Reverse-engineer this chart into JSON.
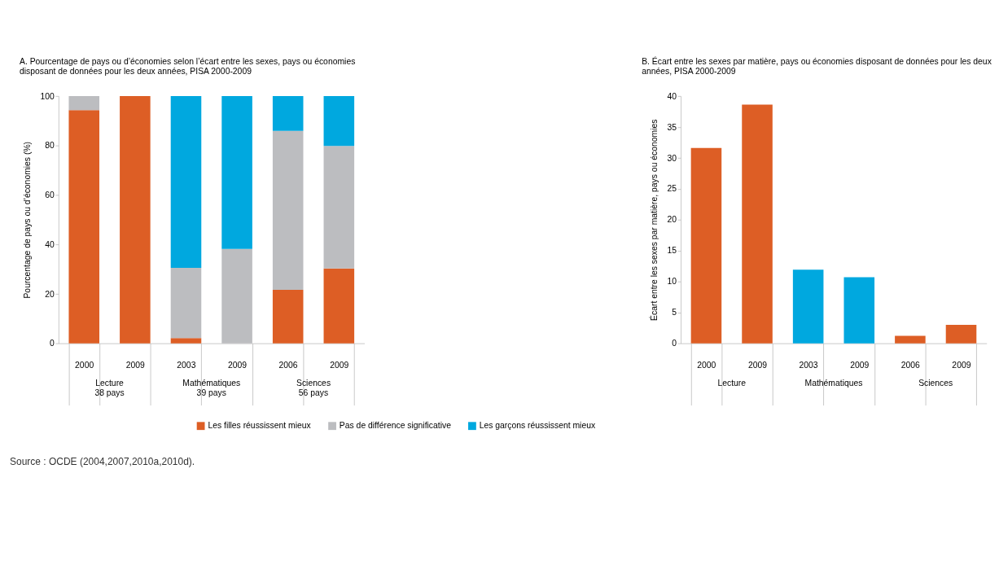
{
  "chart_data": [
    {
      "type": "bar",
      "title": "A. Pourcentage de pays ou d’économies selon l’écart entre les sexes,  pays ou économies disposant de données pour les deux années, PISA 2000-2009",
      "ylabel": "Pourcentage de pays ou d’économies (%)",
      "categories": [
        "2000",
        "2009",
        "2003",
        "2009",
        "2006",
        "2009"
      ],
      "stacked": true,
      "ylim": [
        0,
        100
      ],
      "yticks": [
        0,
        20,
        40,
        60,
        80,
        100
      ],
      "grid": false,
      "legend": "bottom",
      "series": [
        {
          "name": "Les filles réussissent mieux",
          "color": "#dd5e25",
          "values": [
            94.3,
            100,
            2.1,
            0,
            21.6,
            30.3
          ]
        },
        {
          "name": "Pas de différence significative",
          "color": "#bcbdc0",
          "values": [
            5.7,
            0,
            28.4,
            38.2,
            64.3,
            49.5
          ]
        },
        {
          "name": "Les garçons réussissent mieux",
          "color": "#00a8df",
          "values": [
            0,
            0,
            69.5,
            61.8,
            14.1,
            20.2
          ]
        }
      ],
      "annotations": [
        "Lecture\n38 pays",
        "Mathématiques\n39 pays",
        "Sciences\n56 pays",
        "Source : OCDE (2004,2007,2010a,2010d)."
      ]
    },
    {
      "type": "bar",
      "title": "B. Écart entre les sexes par matière, pays ou économies disposant de données pour les deux années, PISA 2000-2009",
      "ylabel": "Écart entre les sexes par matière, pays ou économies",
      "categories": [
        "2000",
        "2009",
        "2003",
        "2009",
        "2006",
        "2009"
      ],
      "values": [
        31.6,
        38.6,
        11.9,
        10.7,
        1.2,
        3.0
      ],
      "colors": [
        "#dd5e25",
        "#dd5e25",
        "#00a8df",
        "#00a8df",
        "#dd5e25",
        "#dd5e25"
      ],
      "ylim": [
        0,
        40
      ],
      "yticks": [
        0,
        5,
        10,
        15,
        20,
        25,
        30,
        35,
        40
      ],
      "grid": false,
      "annotations": [
        "Lecture",
        "Mathématiques",
        "Sciences"
      ]
    }
  ]
}
